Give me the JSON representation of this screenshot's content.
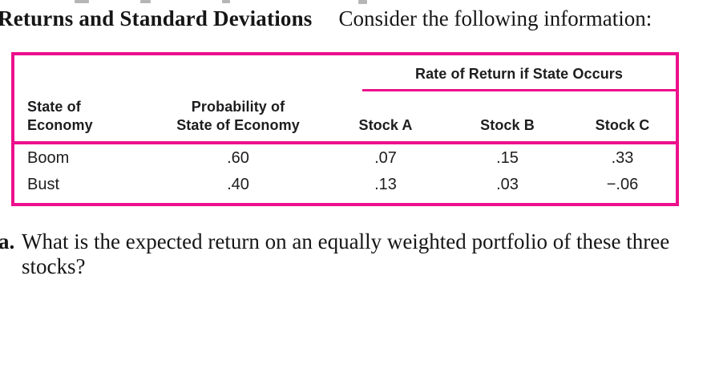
{
  "colors": {
    "accent_pink": "#ec108c",
    "text_black": "#1e1e1e"
  },
  "heading": {
    "problem_title": "Returns and Standard Deviations",
    "lead_in": "Consider the following information:"
  },
  "table": {
    "spanner": "Rate of Return if State Occurs",
    "headers": {
      "state": [
        "State of",
        "Economy"
      ],
      "probability": [
        "Probability of",
        "State of Economy"
      ],
      "stock_a": "Stock A",
      "stock_b": "Stock B",
      "stock_c": "Stock C"
    },
    "rows": [
      {
        "state": "Boom",
        "probability": ".60",
        "stock_a": ".07",
        "stock_b": ".15",
        "stock_c": ".33"
      },
      {
        "state": "Bust",
        "probability": ".40",
        "stock_a": ".13",
        "stock_b": ".03",
        "stock_c": "−.06"
      }
    ]
  },
  "question": {
    "label": "a.",
    "text": "What is the expected return on an equally weighted portfolio of these three stocks?"
  }
}
